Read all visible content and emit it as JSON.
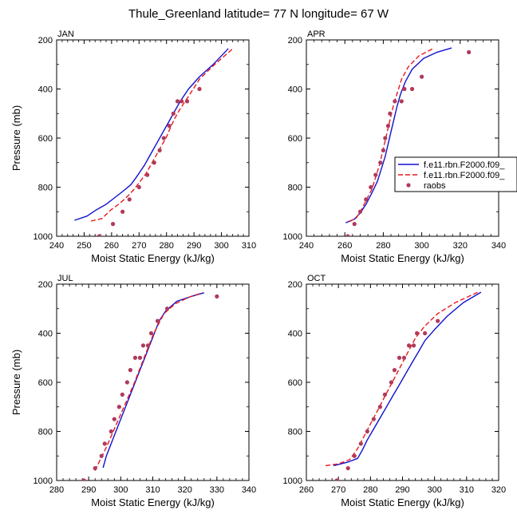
{
  "title": "Thule_Greenland  latitude= 77 N longitude= 67 W",
  "legend": {
    "position": "right of APR panel",
    "entries": [
      {
        "label": "f.e11.rbn.F2000.f09_",
        "style": "solid",
        "color": "#1010d0"
      },
      {
        "label": "f.e11.rbn.F2000.f09_",
        "style": "dashed",
        "color": "#e8191e"
      },
      {
        "label": "raobs",
        "style": "dot",
        "color": "#b03a5a"
      }
    ]
  },
  "chart_data": [
    {
      "type": "line",
      "panel": "JAN",
      "xlabel": "Moist Static Energy (kJ/kg)",
      "ylabel": "Pressure (mb)",
      "xlim": [
        240,
        310
      ],
      "ylim": [
        1000,
        200
      ],
      "xticks": [
        "240",
        "250",
        "260",
        "270",
        "280",
        "290",
        "300",
        "310"
      ],
      "yticks": [
        "200",
        "400",
        "600",
        "800",
        "1000"
      ],
      "series": [
        {
          "style": "solid",
          "color": "#1010d0",
          "x": [
            246.5,
            251,
            254.5,
            258,
            261,
            264,
            267,
            269,
            270.5,
            272,
            273.5,
            275,
            276.5,
            278,
            279.5,
            281,
            283,
            285,
            288,
            292,
            297,
            302.5
          ],
          "y": [
            935,
            918,
            892,
            870,
            844,
            818,
            790,
            760,
            735,
            710,
            680,
            650,
            620,
            590,
            560,
            530,
            490,
            450,
            400,
            350,
            300,
            235
          ]
        },
        {
          "style": "dashed",
          "color": "#e8191e",
          "x": [
            252.5,
            256.5,
            259.5,
            263,
            266,
            268.5,
            270.5,
            272.5,
            274,
            275.5,
            277,
            278.5,
            280,
            281.5,
            283,
            285,
            288,
            292,
            297.5,
            304.5
          ],
          "y": [
            938,
            928,
            895,
            866,
            835,
            805,
            775,
            745,
            715,
            685,
            655,
            625,
            595,
            555,
            520,
            480,
            430,
            360,
            300,
            232
          ]
        },
        {
          "style": "dot",
          "color": "#b03a5a",
          "x": [
            255.5,
            260.5,
            264,
            266.5,
            270,
            273,
            275.5,
            277.5,
            279,
            281,
            282.5,
            284,
            285.5,
            287.5,
            292
          ],
          "y": [
            1000,
            950,
            900,
            850,
            800,
            750,
            700,
            650,
            600,
            550,
            500,
            450,
            450,
            450,
            400
          ]
        }
      ]
    },
    {
      "type": "line",
      "panel": "APR",
      "xlabel": "Moist Static Energy (kJ/kg)",
      "ylabel": "",
      "xlim": [
        240,
        340
      ],
      "ylim": [
        1000,
        200
      ],
      "xticks": [
        "240",
        "260",
        "280",
        "300",
        "320",
        "340"
      ],
      "yticks": [
        "200",
        "400",
        "600",
        "800",
        "1000"
      ],
      "series": [
        {
          "style": "solid",
          "color": "#1010d0",
          "x": [
            260.5,
            265,
            268,
            271,
            274,
            277,
            279,
            281,
            282.5,
            284,
            285.5,
            287,
            289,
            291.5,
            295,
            301,
            308,
            315.5
          ],
          "y": [
            945,
            930,
            905,
            870,
            825,
            775,
            725,
            675,
            625,
            575,
            525,
            475,
            420,
            370,
            320,
            275,
            250,
            233
          ]
        },
        {
          "style": "dashed",
          "color": "#e8191e",
          "x": [
            262.5,
            266,
            268.5,
            271,
            274,
            276,
            278,
            279.5,
            281,
            282.5,
            284,
            285.5,
            287.5,
            289.5,
            293,
            298.5,
            306.5
          ],
          "y": [
            940,
            925,
            895,
            855,
            810,
            760,
            710,
            660,
            610,
            560,
            510,
            460,
            410,
            360,
            310,
            265,
            233
          ]
        },
        {
          "style": "dot",
          "color": "#b03a5a",
          "x": [
            261.5,
            265,
            268,
            271,
            273.5,
            276,
            278.5,
            280,
            281,
            282.5,
            283.5,
            286,
            289.5,
            291,
            295,
            300,
            324.5
          ],
          "y": [
            1000,
            950,
            900,
            850,
            800,
            750,
            700,
            650,
            600,
            550,
            500,
            450,
            450,
            400,
            400,
            350,
            250
          ]
        }
      ]
    },
    {
      "type": "line",
      "panel": "JUL",
      "xlabel": "Moist Static Energy (kJ/kg)",
      "ylabel": "Pressure (mb)",
      "xlim": [
        280,
        340
      ],
      "ylim": [
        1000,
        200
      ],
      "xticks": [
        "280",
        "290",
        "300",
        "310",
        "320",
        "330",
        "340"
      ],
      "yticks": [
        "200",
        "400",
        "600",
        "800",
        "1000"
      ],
      "series": [
        {
          "style": "solid",
          "color": "#1010d0",
          "x": [
            294.5,
            295.5,
            297,
            298.5,
            300,
            301.5,
            303,
            304.5,
            306,
            307.5,
            309,
            310.5,
            312,
            314,
            317.5,
            322.5,
            326
          ],
          "y": [
            948,
            900,
            850,
            800,
            750,
            700,
            650,
            600,
            550,
            500,
            450,
            400,
            350,
            310,
            270,
            248,
            235
          ]
        },
        {
          "style": "dashed",
          "color": "#e8191e",
          "x": [
            292,
            293.5,
            295,
            296.5,
            298,
            299.5,
            301,
            302.5,
            304,
            305.5,
            307,
            308.5,
            310,
            311.5,
            313.5,
            317,
            321.5,
            325.5
          ],
          "y": [
            960,
            918,
            878,
            835,
            790,
            745,
            700,
            655,
            610,
            560,
            510,
            460,
            410,
            370,
            320,
            280,
            252,
            235
          ]
        },
        {
          "style": "dot",
          "color": "#b03a5a",
          "x": [
            288.5,
            292,
            294,
            295,
            297,
            298,
            299.5,
            300.5,
            302,
            303,
            304.5,
            306,
            307,
            308.5,
            309.5,
            311.5,
            314.5,
            330
          ],
          "y": [
            1000,
            950,
            900,
            850,
            800,
            750,
            700,
            650,
            600,
            550,
            500,
            500,
            450,
            450,
            400,
            350,
            300,
            250
          ]
        }
      ]
    },
    {
      "type": "line",
      "panel": "OCT",
      "xlabel": "Moist Static Energy (kJ/kg)",
      "ylabel": "",
      "xlim": [
        260,
        320
      ],
      "ylim": [
        1000,
        200
      ],
      "xticks": [
        "260",
        "270",
        "280",
        "290",
        "300",
        "310",
        "320"
      ],
      "yticks": [
        "200",
        "400",
        "600",
        "800",
        "1000"
      ],
      "series": [
        {
          "style": "solid",
          "color": "#1010d0",
          "x": [
            268.5,
            273,
            276,
            277.5,
            279,
            281,
            283,
            285,
            287,
            289,
            291,
            293,
            295,
            297,
            300,
            304,
            309,
            314.5
          ],
          "y": [
            940,
            925,
            910,
            875,
            835,
            790,
            745,
            700,
            655,
            610,
            565,
            520,
            475,
            430,
            385,
            330,
            275,
            233
          ]
        },
        {
          "style": "dashed",
          "color": "#e8191e",
          "x": [
            266,
            270,
            273.5,
            276,
            278,
            280,
            282,
            284,
            286,
            288,
            290,
            292,
            294,
            297,
            301,
            306.5,
            313.5
          ],
          "y": [
            940,
            932,
            915,
            870,
            820,
            770,
            720,
            670,
            620,
            570,
            520,
            470,
            420,
            370,
            320,
            275,
            233
          ]
        },
        {
          "style": "dot",
          "color": "#b03a5a",
          "x": [
            269.5,
            273,
            275,
            277,
            279,
            281,
            283,
            284.5,
            286.5,
            287.5,
            289,
            290.5,
            292,
            293.5,
            294.5,
            297,
            301
          ],
          "y": [
            1000,
            950,
            900,
            850,
            800,
            750,
            700,
            650,
            600,
            550,
            500,
            500,
            450,
            450,
            400,
            400,
            350
          ]
        }
      ]
    }
  ]
}
